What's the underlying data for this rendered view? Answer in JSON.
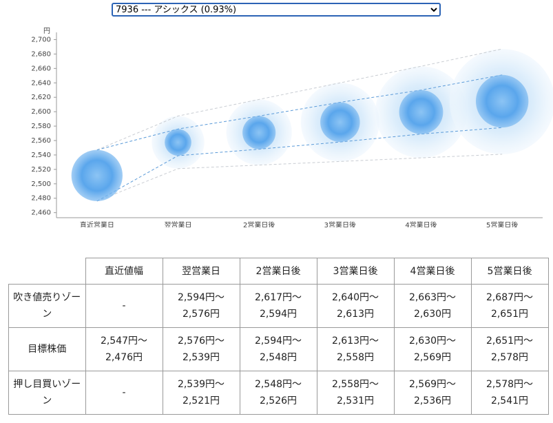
{
  "selector": "7936 --- アシックス (0.93%)",
  "chart_data": {
    "type": "bubble-range",
    "unit": "円",
    "categories": [
      "直近営業日",
      "翌営業日",
      "2営業日後",
      "3営業日後",
      "4営業日後",
      "5営業日後"
    ],
    "target_high": [
      2547,
      2576,
      2594,
      2613,
      2630,
      2651
    ],
    "target_low": [
      2476,
      2539,
      2548,
      2558,
      2569,
      2578
    ],
    "zone_high": [
      null,
      2594,
      2617,
      2640,
      2663,
      2687
    ],
    "zone_low": [
      null,
      2521,
      2526,
      2531,
      2536,
      2541
    ],
    "ylim": [
      2453,
      2710
    ],
    "yticks": [
      {
        "value": 2460,
        "label": "2,460"
      },
      {
        "value": 2480,
        "label": "2,480"
      },
      {
        "value": 2500,
        "label": "2,500"
      },
      {
        "value": 2520,
        "label": "2,520"
      },
      {
        "value": 2540,
        "label": "2,540"
      },
      {
        "value": 2560,
        "label": "2,560"
      },
      {
        "value": 2580,
        "label": "2,580"
      },
      {
        "value": 2600,
        "label": "2,600"
      },
      {
        "value": 2620,
        "label": "2,620"
      },
      {
        "value": 2640,
        "label": "2,640"
      },
      {
        "value": 2660,
        "label": "2,660"
      },
      {
        "value": 2680,
        "label": "2,680"
      },
      {
        "value": 2700,
        "label": "2,700"
      }
    ]
  },
  "table": {
    "header": [
      "直近値幅",
      "翌営業日",
      "2営業日後",
      "3営業日後",
      "4営業日後",
      "5営業日後"
    ],
    "rows": [
      {
        "label": "吹き値売りゾーン",
        "cells": [
          [
            "-"
          ],
          [
            "2,594円〜",
            "2,576円"
          ],
          [
            "2,617円〜",
            "2,594円"
          ],
          [
            "2,640円〜",
            "2,613円"
          ],
          [
            "2,663円〜",
            "2,630円"
          ],
          [
            "2,687円〜",
            "2,651円"
          ]
        ]
      },
      {
        "label": "目標株価",
        "cells": [
          [
            "2,547円〜",
            "2,476円"
          ],
          [
            "2,576円〜",
            "2,539円"
          ],
          [
            "2,594円〜",
            "2,548円"
          ],
          [
            "2,613円〜",
            "2,558円"
          ],
          [
            "2,630円〜",
            "2,569円"
          ],
          [
            "2,651円〜",
            "2,578円"
          ]
        ]
      },
      {
        "label": "押し目買いゾーン",
        "cells": [
          [
            "-"
          ],
          [
            "2,539円〜",
            "2,521円"
          ],
          [
            "2,548円〜",
            "2,526円"
          ],
          [
            "2,558円〜",
            "2,531円"
          ],
          [
            "2,569円〜",
            "2,536円"
          ],
          [
            "2,578円〜",
            "2,541円"
          ]
        ]
      }
    ]
  }
}
